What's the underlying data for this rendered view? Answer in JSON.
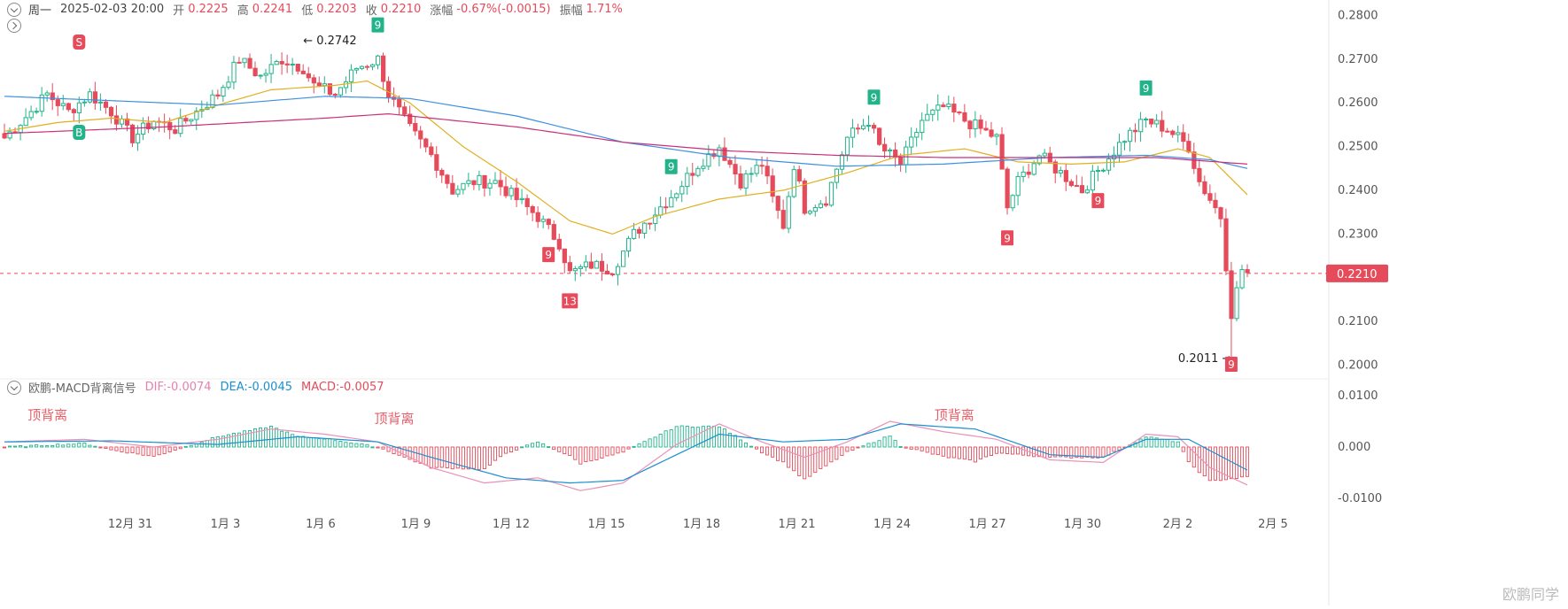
{
  "header": {
    "day": "周一",
    "datetime": "2025-02-03 20:00",
    "open_label": "开",
    "open": "0.2225",
    "high_label": "高",
    "high": "0.2241",
    "low_label": "低",
    "low": "0.2203",
    "close_label": "收",
    "close": "0.2210",
    "change_label": "涨幅",
    "change": "-0.67%(-0.0015)",
    "amplitude_label": "振幅",
    "amplitude": "1.71%"
  },
  "indicator_header": {
    "name": "欧鹏-MACD背离信号",
    "dif": "DIF:-0.0074",
    "dea": "DEA:-0.0045",
    "macd": "MACD:-0.0057"
  },
  "watermark": "欧鹏同学",
  "colors": {
    "up": "#22b38a",
    "down": "#e54b5a",
    "ma_yellow": "#e0b020",
    "ma_blue": "#3d8fe0",
    "ma_magenta": "#c8307a",
    "dif": "#e891b8",
    "dea": "#1a8fd0",
    "grid": "#f0f0f0"
  },
  "chart_data": [
    {
      "type": "candlestick",
      "title": "",
      "y_axis_ticks": [
        "0.2800",
        "0.2700",
        "0.2600",
        "0.2500",
        "0.2400",
        "0.2300",
        "0.2100",
        "0.2000"
      ],
      "ylim": [
        0.1985,
        0.2815
      ],
      "x_tick_labels": [
        "12月 31",
        "1月 3",
        "1月 6",
        "1月 9",
        "1月 12",
        "1月 15",
        "1月 18",
        "1月 21",
        "1月 24",
        "1月 27",
        "1月 30",
        "2月 2",
        "2月 5"
      ],
      "last_price": "0.2210",
      "annotations": [
        {
          "text": "← 0.2742",
          "price": 0.2742
        },
        {
          "text": "0.2011 →",
          "price": 0.2011
        }
      ],
      "signals": [
        {
          "text": "S",
          "kind": "sell",
          "index": 14
        },
        {
          "text": "B",
          "kind": "buy",
          "index": 14
        },
        {
          "text": "9",
          "kind": "up",
          "index": 70
        },
        {
          "text": "9",
          "kind": "down",
          "index": 102
        },
        {
          "text": "13",
          "kind": "down",
          "index": 106
        },
        {
          "text": "9",
          "kind": "up",
          "index": 125
        },
        {
          "text": "9",
          "kind": "up",
          "index": 163
        },
        {
          "text": "9",
          "kind": "down",
          "index": 188
        },
        {
          "text": "9",
          "kind": "down",
          "index": 205
        },
        {
          "text": "9",
          "kind": "up",
          "index": 214
        },
        {
          "text": "9",
          "kind": "down",
          "index": 230
        }
      ],
      "anchors": [
        [
          0,
          0.252
        ],
        [
          5,
          0.258
        ],
        [
          8,
          0.262
        ],
        [
          12,
          0.258
        ],
        [
          16,
          0.262
        ],
        [
          20,
          0.258
        ],
        [
          24,
          0.252
        ],
        [
          28,
          0.256
        ],
        [
          32,
          0.254
        ],
        [
          36,
          0.258
        ],
        [
          40,
          0.262
        ],
        [
          44,
          0.27
        ],
        [
          48,
          0.266
        ],
        [
          52,
          0.27
        ],
        [
          56,
          0.268
        ],
        [
          58,
          0.264
        ],
        [
          62,
          0.262
        ],
        [
          66,
          0.268
        ],
        [
          70,
          0.27
        ],
        [
          72,
          0.262
        ],
        [
          76,
          0.254
        ],
        [
          80,
          0.248
        ],
        [
          84,
          0.24
        ],
        [
          88,
          0.242
        ],
        [
          92,
          0.242
        ],
        [
          96,
          0.238
        ],
        [
          100,
          0.234
        ],
        [
          104,
          0.228
        ],
        [
          106,
          0.221
        ],
        [
          110,
          0.223
        ],
        [
          114,
          0.222
        ],
        [
          118,
          0.23
        ],
        [
          122,
          0.235
        ],
        [
          126,
          0.24
        ],
        [
          130,
          0.246
        ],
        [
          134,
          0.25
        ],
        [
          138,
          0.242
        ],
        [
          142,
          0.246
        ],
        [
          144,
          0.238
        ],
        [
          146,
          0.232
        ],
        [
          148,
          0.246
        ],
        [
          150,
          0.236
        ],
        [
          154,
          0.238
        ],
        [
          158,
          0.252
        ],
        [
          162,
          0.256
        ],
        [
          164,
          0.25
        ],
        [
          168,
          0.246
        ],
        [
          172,
          0.256
        ],
        [
          176,
          0.259
        ],
        [
          180,
          0.256
        ],
        [
          186,
          0.252
        ],
        [
          188,
          0.236
        ],
        [
          190,
          0.242
        ],
        [
          194,
          0.248
        ],
        [
          198,
          0.244
        ],
        [
          202,
          0.24
        ],
        [
          206,
          0.246
        ],
        [
          210,
          0.252
        ],
        [
          214,
          0.256
        ],
        [
          218,
          0.254
        ],
        [
          222,
          0.25
        ],
        [
          224,
          0.242
        ],
        [
          226,
          0.238
        ],
        [
          228,
          0.234
        ],
        [
          230,
          0.212
        ],
        [
          232,
          0.222
        ],
        [
          233,
          0.221
        ]
      ],
      "moving_averages": [
        {
          "color": "#e0b020",
          "anchors": [
            [
              0,
              0.2535
            ],
            [
              10,
              0.2555
            ],
            [
              20,
              0.2565
            ],
            [
              30,
              0.2555
            ],
            [
              40,
              0.2595
            ],
            [
              50,
              0.263
            ],
            [
              62,
              0.264
            ],
            [
              68,
              0.265
            ],
            [
              76,
              0.26
            ],
            [
              86,
              0.25
            ],
            [
              96,
              0.242
            ],
            [
              106,
              0.233
            ],
            [
              114,
              0.23
            ],
            [
              122,
              0.234
            ],
            [
              134,
              0.238
            ],
            [
              146,
              0.24
            ],
            [
              158,
              0.244
            ],
            [
              168,
              0.248
            ],
            [
              180,
              0.2495
            ],
            [
              190,
              0.2465
            ],
            [
              200,
              0.246
            ],
            [
              210,
              0.2465
            ],
            [
              220,
              0.2495
            ],
            [
              226,
              0.2475
            ],
            [
              233,
              0.239
            ]
          ]
        },
        {
          "color": "#3d8fe0",
          "anchors": [
            [
              0,
              0.2615
            ],
            [
              20,
              0.2605
            ],
            [
              40,
              0.2595
            ],
            [
              60,
              0.2615
            ],
            [
              76,
              0.261
            ],
            [
              96,
              0.257
            ],
            [
              116,
              0.251
            ],
            [
              136,
              0.2475
            ],
            [
              156,
              0.2455
            ],
            [
              176,
              0.246
            ],
            [
              196,
              0.2475
            ],
            [
              214,
              0.248
            ],
            [
              226,
              0.247
            ],
            [
              233,
              0.245
            ]
          ]
        },
        {
          "color": "#c8307a",
          "anchors": [
            [
              0,
              0.253
            ],
            [
              30,
              0.2545
            ],
            [
              60,
              0.2565
            ],
            [
              72,
              0.2575
            ],
            [
              96,
              0.2545
            ],
            [
              116,
              0.251
            ],
            [
              136,
              0.249
            ],
            [
              156,
              0.248
            ],
            [
              176,
              0.2475
            ],
            [
              196,
              0.2475
            ],
            [
              216,
              0.2475
            ],
            [
              233,
              0.246
            ]
          ]
        }
      ]
    },
    {
      "type": "macd",
      "title": "",
      "y_axis_ticks": [
        "0.0100",
        "0.000",
        "-0.0100"
      ],
      "ylim": [
        -0.0112,
        0.0112
      ],
      "labels": [
        {
          "text": "顶背离",
          "index": 5
        },
        {
          "text": "顶背离",
          "index": 70
        },
        {
          "text": "顶背离",
          "index": 175
        }
      ],
      "dif_anchors": [
        [
          0,
          0.001
        ],
        [
          15,
          0.0015
        ],
        [
          28,
          0.0
        ],
        [
          40,
          0.0015
        ],
        [
          50,
          0.0035
        ],
        [
          60,
          0.0025
        ],
        [
          70,
          0.001
        ],
        [
          80,
          -0.004
        ],
        [
          90,
          -0.007
        ],
        [
          100,
          -0.006
        ],
        [
          108,
          -0.0085
        ],
        [
          116,
          -0.007
        ],
        [
          126,
          0.0005
        ],
        [
          134,
          0.0045
        ],
        [
          142,
          0.001
        ],
        [
          150,
          -0.002
        ],
        [
          158,
          0.001
        ],
        [
          166,
          0.005
        ],
        [
          176,
          0.003
        ],
        [
          186,
          0.0015
        ],
        [
          196,
          -0.0025
        ],
        [
          206,
          -0.003
        ],
        [
          214,
          0.0025
        ],
        [
          220,
          0.002
        ],
        [
          226,
          -0.004
        ],
        [
          233,
          -0.0074
        ]
      ],
      "dea_anchors": [
        [
          0,
          0.001
        ],
        [
          20,
          0.0012
        ],
        [
          40,
          0.0005
        ],
        [
          55,
          0.002
        ],
        [
          70,
          0.001
        ],
        [
          80,
          -0.002
        ],
        [
          94,
          -0.006
        ],
        [
          106,
          -0.007
        ],
        [
          116,
          -0.0065
        ],
        [
          126,
          -0.0015
        ],
        [
          134,
          0.0025
        ],
        [
          146,
          0.001
        ],
        [
          158,
          0.0015
        ],
        [
          168,
          0.0045
        ],
        [
          182,
          0.0035
        ],
        [
          196,
          -0.0015
        ],
        [
          206,
          -0.002
        ],
        [
          214,
          0.0015
        ],
        [
          222,
          0.0015
        ],
        [
          233,
          -0.0045
        ]
      ]
    }
  ]
}
